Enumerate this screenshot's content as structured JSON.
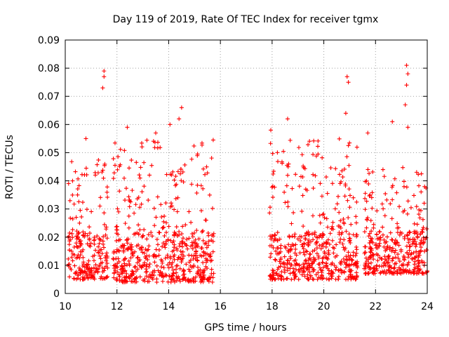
{
  "chart_data": {
    "type": "scatter",
    "title": "Day 119 of 2019, Rate Of TEC Index for receiver tgmx",
    "xlabel": "GPS time / hours",
    "ylabel": "ROTI / TECUs",
    "xlim": [
      10,
      24
    ],
    "ylim": [
      0,
      0.09
    ],
    "x_ticks": [
      10,
      12,
      14,
      16,
      18,
      20,
      22,
      24
    ],
    "x_tick_labels": [
      "10",
      "12",
      "14",
      "16",
      "18",
      "20",
      "22",
      "24"
    ],
    "y_ticks": [
      0,
      0.01,
      0.02,
      0.03,
      0.04,
      0.05,
      0.06,
      0.07,
      0.08,
      0.09
    ],
    "y_tick_labels": [
      "0",
      "0.01",
      "0.02",
      "0.03",
      "0.04",
      "0.05",
      "0.06",
      "0.07",
      "0.08",
      "0.09"
    ],
    "grid": true,
    "marker": "+",
    "series_color": "#ff0000",
    "data_gap_hours": [
      15.75,
      17.9
    ],
    "segments": [
      {
        "start": 10.1,
        "end": 11.65,
        "base_low": 0.005,
        "base_high": 0.04
      },
      {
        "start": 11.85,
        "end": 15.75,
        "base_low": 0.004,
        "base_high": 0.045
      },
      {
        "start": 17.9,
        "end": 21.3,
        "base_low": 0.005,
        "base_high": 0.045
      },
      {
        "start": 21.55,
        "end": 24.0,
        "base_low": 0.007,
        "base_high": 0.035
      }
    ],
    "notable_peaks": [
      {
        "x": 11.5,
        "y": 0.079
      },
      {
        "x": 11.5,
        "y": 0.077
      },
      {
        "x": 11.45,
        "y": 0.073
      },
      {
        "x": 14.5,
        "y": 0.066
      },
      {
        "x": 14.4,
        "y": 0.062
      },
      {
        "x": 18.6,
        "y": 0.062
      },
      {
        "x": 17.95,
        "y": 0.058
      },
      {
        "x": 20.9,
        "y": 0.077
      },
      {
        "x": 20.95,
        "y": 0.075
      },
      {
        "x": 20.85,
        "y": 0.064
      },
      {
        "x": 21.7,
        "y": 0.057
      },
      {
        "x": 23.2,
        "y": 0.081
      },
      {
        "x": 23.25,
        "y": 0.078
      },
      {
        "x": 23.2,
        "y": 0.074
      },
      {
        "x": 23.15,
        "y": 0.067
      },
      {
        "x": 23.25,
        "y": 0.059
      },
      {
        "x": 22.65,
        "y": 0.061
      },
      {
        "x": 10.8,
        "y": 0.055
      },
      {
        "x": 12.4,
        "y": 0.059
      },
      {
        "x": 13.5,
        "y": 0.057
      },
      {
        "x": 14.05,
        "y": 0.06
      }
    ]
  }
}
